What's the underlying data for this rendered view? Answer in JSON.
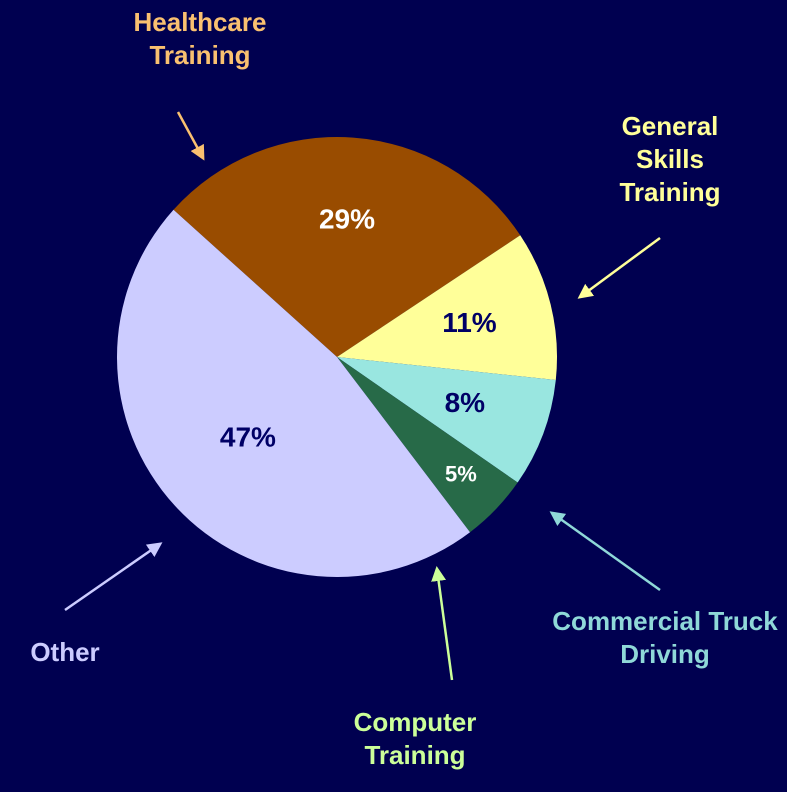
{
  "chart_data": {
    "type": "pie",
    "categories": [
      "Healthcare Training",
      "General Skills Training",
      "Commercial Truck Driving",
      "Computer Training",
      "Other"
    ],
    "values": [
      29,
      11,
      8,
      5,
      47
    ],
    "value_labels": [
      "29%",
      "11%",
      "8%",
      "5%",
      "47%"
    ],
    "colors": [
      "#994c00",
      "#ffff99",
      "#99e6e0",
      "#276a48",
      "#ccccff"
    ],
    "label_colors": [
      "#f9c070",
      "#ffff99",
      "#8fd8d8",
      "#ccff99",
      "#ccccff"
    ],
    "value_label_colors": [
      "#ffffff",
      "#000066",
      "#000066",
      "#ffffff",
      "#000066"
    ]
  }
}
